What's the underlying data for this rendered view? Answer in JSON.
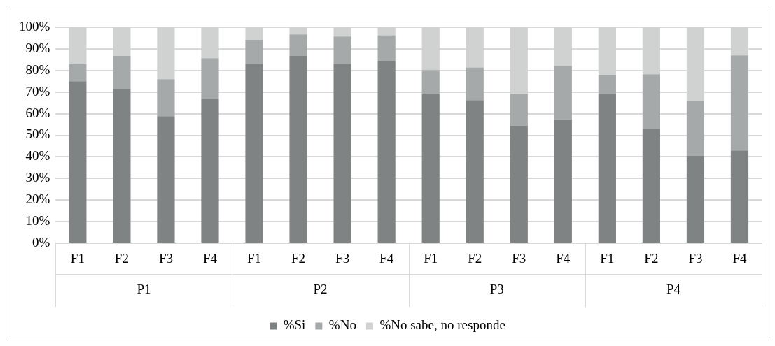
{
  "chart_data": {
    "type": "bar",
    "stacked": true,
    "categories": [
      "F1",
      "F2",
      "F3",
      "F4",
      "F1",
      "F2",
      "F3",
      "F4",
      "F1",
      "F2",
      "F3",
      "F4",
      "F1",
      "F2",
      "F3",
      "F4"
    ],
    "series": [
      {
        "name": "%Si",
        "color": "#808383",
        "values": [
          75,
          71.2,
          58.8,
          66.7,
          83.1,
          86.7,
          83.1,
          84.5,
          69.2,
          66.3,
          54.5,
          57.4,
          69.2,
          53.1,
          40.6,
          43
        ]
      },
      {
        "name": "%No",
        "color": "#a6a9a9",
        "values": [
          8,
          15.5,
          17.2,
          19,
          11.1,
          10,
          12.6,
          11.8,
          11,
          15.1,
          14.4,
          24.7,
          8.7,
          25.1,
          25.4,
          44
        ]
      },
      {
        "name": "%No sabe, no responde",
        "color": "#d0d2d1",
        "values": [
          17,
          13.3,
          24,
          14.3,
          5.8,
          3.3,
          4.3,
          3.7,
          19.8,
          18.6,
          31.1,
          17.9,
          22.1,
          21.8,
          34,
          13
        ]
      }
    ],
    "annotations": [
      "P1",
      "P2",
      "P3",
      "P4"
    ],
    "ylim": [
      0,
      100
    ],
    "yticks": [
      {
        "value": 0,
        "label": "0%"
      },
      {
        "value": 10,
        "label": "10%"
      },
      {
        "value": 20,
        "label": "20%"
      },
      {
        "value": 30,
        "label": "30%"
      },
      {
        "value": 40,
        "label": "40%"
      },
      {
        "value": 50,
        "label": "50%"
      },
      {
        "value": 60,
        "label": "60%"
      },
      {
        "value": 70,
        "label": "70%"
      },
      {
        "value": 80,
        "label": "80%"
      },
      {
        "value": 90,
        "label": "90%"
      },
      {
        "value": 100,
        "label": "100%"
      }
    ],
    "grid": "y",
    "legend": "bottom"
  }
}
